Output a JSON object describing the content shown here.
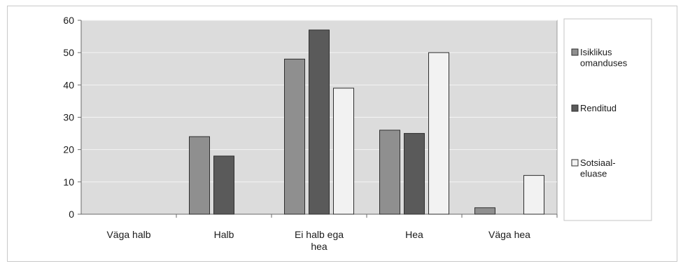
{
  "chart_data": {
    "type": "bar",
    "title": "",
    "xlabel": "",
    "ylabel": "",
    "ylim": [
      0,
      60
    ],
    "yticks": [
      0,
      10,
      20,
      30,
      40,
      50,
      60
    ],
    "grid": true,
    "legend_position": "right",
    "categories": [
      [
        "Väga halb"
      ],
      [
        "Halb"
      ],
      [
        "Ei halb ega",
        "hea"
      ],
      [
        "Hea"
      ],
      [
        "Väga hea"
      ]
    ],
    "series": [
      {
        "name": [
          "Isiklikus",
          "omanduses"
        ],
        "values": [
          0,
          24,
          48,
          26,
          2
        ],
        "color": "#8f8f8f"
      },
      {
        "name": [
          "Renditud"
        ],
        "values": [
          0,
          18,
          57,
          25,
          0
        ],
        "color": "#5a5a5a"
      },
      {
        "name": [
          "Sotsiaal-",
          "eluase"
        ],
        "values": [
          0,
          0,
          39,
          50,
          12
        ],
        "color": "#f2f2f2"
      }
    ],
    "plot_background": "#dcdcdc"
  }
}
